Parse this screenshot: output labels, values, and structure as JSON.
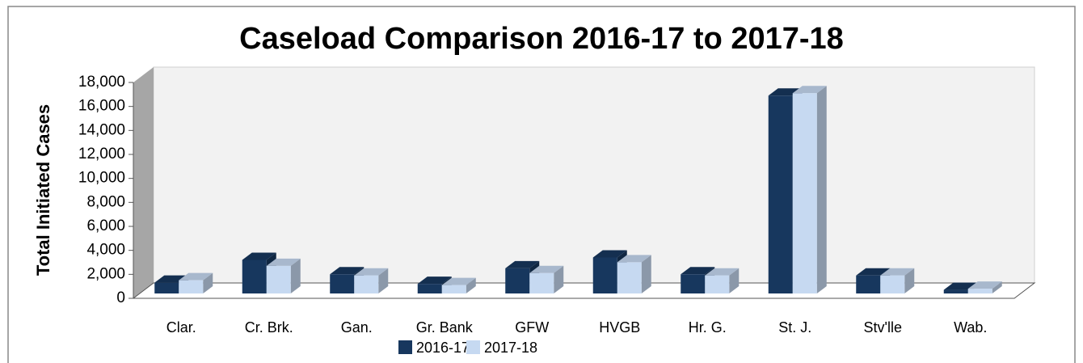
{
  "chart_data": {
    "type": "bar3d",
    "title": "Caseload Comparison 2016-17 to 2017-18",
    "y_label": "Total Initiated Cases",
    "categories": [
      "Clar.",
      "Cr. Brk.",
      "Gan.",
      "Gr. Bank",
      "GFW",
      "HVGB",
      "Hr. G.",
      "St. J.",
      "Stv'lle",
      "Wab."
    ],
    "series": [
      {
        "name": "2016-17",
        "color": "#17375e",
        "values": [
          900,
          2800,
          1600,
          800,
          2100,
          3000,
          1600,
          16500,
          1500,
          300
        ]
      },
      {
        "name": "2017-18",
        "color": "#c6d9f1",
        "values": [
          1100,
          2300,
          1500,
          700,
          1700,
          2600,
          1500,
          16700,
          1500,
          400
        ]
      }
    ],
    "ylim": [
      0,
      18000
    ],
    "yticks": [
      0,
      {
        "value": 2000,
        "label": "2,000"
      },
      {
        "value": 4000,
        "label": "4,000"
      },
      {
        "value": 6000,
        "label": "6,000"
      },
      {
        "value": 8000,
        "label": "8,000"
      },
      {
        "value": 10000,
        "label": "10,000"
      },
      {
        "value": 12000,
        "label": "12,000"
      },
      {
        "value": 14000,
        "label": "14,000"
      },
      {
        "value": 16000,
        "label": "16,000"
      },
      {
        "value": 18000,
        "label": "18,000"
      }
    ],
    "legend": "bottom"
  }
}
